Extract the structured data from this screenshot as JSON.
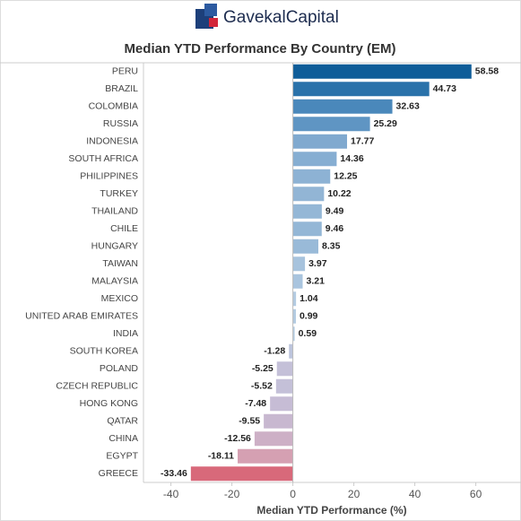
{
  "chart_data": {
    "type": "barh",
    "brand": "GavekalCapital",
    "title": "Median YTD Performance By Country (EM)",
    "x_label": "Median YTD Performance (%)",
    "categories": [
      "PERU",
      "BRAZIL",
      "COLOMBIA",
      "RUSSIA",
      "INDONESIA",
      "SOUTH AFRICA",
      "PHILIPPINES",
      "TURKEY",
      "THAILAND",
      "CHILE",
      "HUNGARY",
      "TAIWAN",
      "MALAYSIA",
      "MEXICO",
      "UNITED ARAB EMIRATES",
      "INDIA",
      "SOUTH KOREA",
      "POLAND",
      "CZECH REPUBLIC",
      "HONG KONG",
      "QATAR",
      "CHINA",
      "EGYPT",
      "GREECE"
    ],
    "values": [
      58.58,
      44.73,
      32.63,
      25.29,
      17.77,
      14.36,
      12.25,
      10.22,
      9.49,
      9.46,
      8.35,
      3.97,
      3.21,
      1.04,
      0.99,
      0.59,
      -1.28,
      -5.25,
      -5.52,
      -7.48,
      -9.55,
      -12.56,
      -18.11,
      -33.46
    ],
    "colors": [
      "#0f5d99",
      "#2a72aa",
      "#4a88bb",
      "#5f95c3",
      "#80a9cf",
      "#86aed2",
      "#8db2d4",
      "#92b5d5",
      "#94b7d6",
      "#94b7d6",
      "#99bad8",
      "#a7c3dd",
      "#a9c4de",
      "#b3cbe2",
      "#b3cbe2",
      "#b5cde3",
      "#bcc4dc",
      "#c4c0d8",
      "#c4c0d8",
      "#c6bcd5",
      "#c8b8d0",
      "#cdb0c6",
      "#d5a0b2",
      "#d8697a"
    ],
    "xlim": [
      -49,
      71
    ],
    "xticks": [
      -40,
      -20,
      0,
      20,
      40,
      60
    ],
    "grid": false
  }
}
